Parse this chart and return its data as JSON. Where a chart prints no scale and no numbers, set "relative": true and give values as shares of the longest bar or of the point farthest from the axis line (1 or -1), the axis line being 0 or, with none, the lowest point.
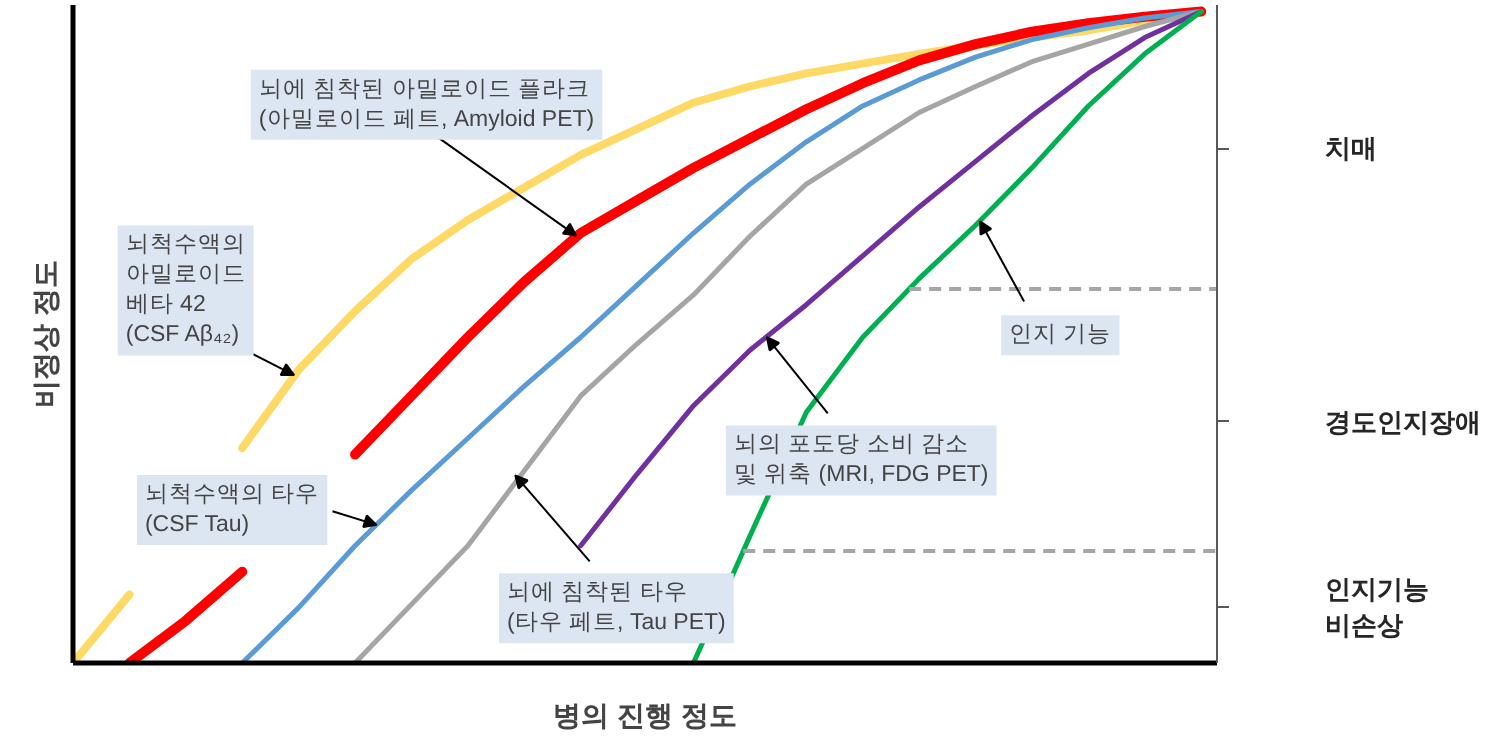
{
  "chart_data": {
    "type": "line",
    "relative": true,
    "xlabel": "병의 진행 정도",
    "ylabel": "비정상 정도",
    "categories": [
      null,
      null,
      null,
      null,
      null,
      null,
      null,
      null,
      null,
      null,
      null,
      null,
      null,
      null,
      null,
      null,
      null,
      null,
      null,
      null,
      null
    ],
    "tick_labels": false,
    "grid": false,
    "marker": "none",
    "line_style": "solid",
    "series": [
      {
        "color": "#ffd966",
        "values": [
          0,
          0.105,
          null,
          0.33,
          0.45,
          0.54,
          0.62,
          0.68,
          0.73,
          0.78,
          0.82,
          0.86,
          0.885,
          0.905,
          0.92,
          0.935,
          0.948,
          0.96,
          0.971,
          0.986,
          1
        ]
      },
      {
        "color": "#ff0000",
        "values": [
          null,
          0,
          0.065,
          0.14,
          null,
          0.32,
          0.41,
          0.5,
          0.585,
          0.66,
          0.71,
          0.76,
          0.805,
          0.85,
          0.89,
          0.925,
          0.95,
          0.969,
          0.982,
          0.992,
          1
        ]
      },
      {
        "color": "#5b9bd5",
        "values": [
          null,
          null,
          null,
          0,
          0.085,
          0.18,
          0.265,
          0.345,
          0.425,
          0.5,
          0.58,
          0.66,
          0.735,
          0.8,
          0.855,
          0.895,
          0.93,
          0.957,
          0.975,
          0.99,
          1
        ]
      },
      {
        "color": "#a5a5a5",
        "values": [
          null,
          null,
          null,
          null,
          null,
          0,
          0.09,
          0.18,
          0.295,
          0.41,
          0.49,
          0.565,
          0.655,
          0.735,
          0.79,
          0.845,
          0.885,
          0.923,
          0.95,
          0.977,
          1
        ]
      },
      {
        "color": "#7030a0",
        "values": [
          null,
          null,
          null,
          null,
          null,
          null,
          null,
          null,
          null,
          0.18,
          0.29,
          0.395,
          0.48,
          0.55,
          0.625,
          0.7,
          0.77,
          0.84,
          0.905,
          0.96,
          1
        ]
      },
      {
        "color": "#00b050",
        "values": [
          null,
          null,
          null,
          null,
          null,
          null,
          null,
          null,
          null,
          null,
          null,
          0,
          0.195,
          0.385,
          0.5,
          0.59,
          0.672,
          0.76,
          0.855,
          0.935,
          1
        ]
      }
    ],
    "ref_lines": [
      {
        "axis": "y",
        "value": 0.574,
        "color": "#a6a6a6",
        "line_style": "dashed"
      },
      {
        "axis": "y",
        "value": 0.172,
        "color": "#a6a6a6",
        "line_style": "dashed"
      }
    ],
    "annotations": [
      "뇌에 침착된 아밀로이드 플라크\n(아밀로이드 페트, Amyloid PET)",
      "뇌척수액의\n아밀로이드\n베타 42\n(CSF Aβ₄₂)",
      "뇌척수액의 타우\n(CSF Tau)",
      "뇌에 침착된 타우\n(타우 페트, Tau PET)",
      "뇌의 포도당 소비 감소\n및 위축 (MRI, FDG PET)",
      "인지 기능",
      "치매",
      "경도인지장애",
      "인지기능\n비손상"
    ]
  }
}
